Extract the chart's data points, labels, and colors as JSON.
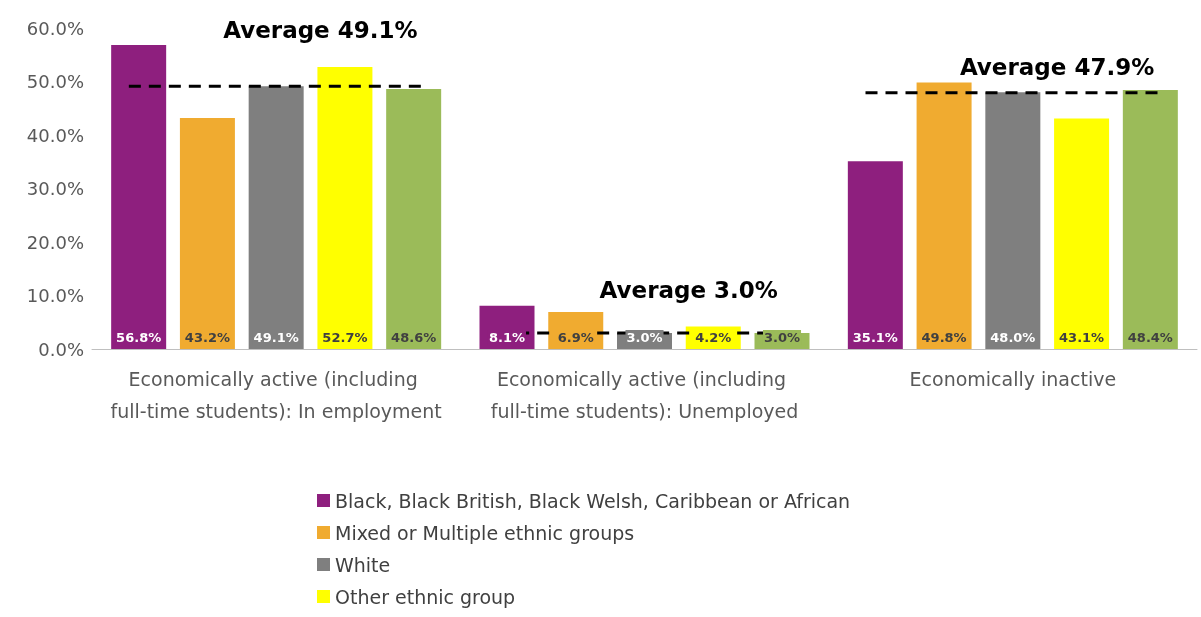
{
  "chart_data": {
    "type": "bar",
    "categories": [
      "Economically active (including full-time students): In employment",
      "Economically active (including full-time students): Unemployed",
      "Economically inactive"
    ],
    "series": [
      {
        "name": "Black, Black British, Black Welsh, Caribbean or African",
        "color": "#8e1f7e",
        "values": [
          56.8,
          8.1,
          35.1
        ],
        "value_labels": [
          "56.8%",
          "8.1%",
          "35.1%"
        ]
      },
      {
        "name": "Mixed or Multiple ethnic groups",
        "color": "#f0ab30",
        "values": [
          43.2,
          6.9,
          49.8
        ],
        "value_labels": [
          "43.2%",
          "6.9%",
          "49.8%"
        ]
      },
      {
        "name": "White",
        "color": "#7f7f7f",
        "values": [
          49.1,
          3.0,
          48.0
        ],
        "value_labels": [
          "49.1%",
          "3.0%",
          "48.0%"
        ]
      },
      {
        "name": "Other ethnic group",
        "color": "#ffff00",
        "values": [
          52.7,
          4.2,
          43.1
        ],
        "value_labels": [
          "52.7%",
          "4.2%",
          "43.1%"
        ]
      },
      {
        "color": "#9bbb59",
        "values": [
          48.6,
          3.0,
          48.4
        ],
        "value_labels": [
          "48.6%",
          "3.0%",
          "48.4%"
        ]
      }
    ],
    "ref_lines": [
      {
        "axis": "y",
        "value": 49.1,
        "label": "Average 49.1%",
        "color": "#000000",
        "line_style": "dashed"
      },
      {
        "axis": "y",
        "value": 3.0,
        "label": "Average 3.0%",
        "color": "#000000",
        "line_style": "dashed"
      },
      {
        "axis": "y",
        "value": 47.9,
        "label": "Average 47.9%",
        "color": "#000000",
        "line_style": "dashed"
      }
    ],
    "ylim": [
      0,
      60
    ],
    "yticks": [
      {
        "value": 0,
        "label": "0.0%"
      },
      {
        "value": 10,
        "label": "10.0%"
      },
      {
        "value": 20,
        "label": "20.0%"
      },
      {
        "value": 30,
        "label": "30.0%"
      },
      {
        "value": 40,
        "label": "40.0%"
      },
      {
        "value": 50,
        "label": "50.0%"
      },
      {
        "value": 60,
        "label": "60.0%"
      }
    ],
    "grid": false,
    "legend": "bottom"
  }
}
